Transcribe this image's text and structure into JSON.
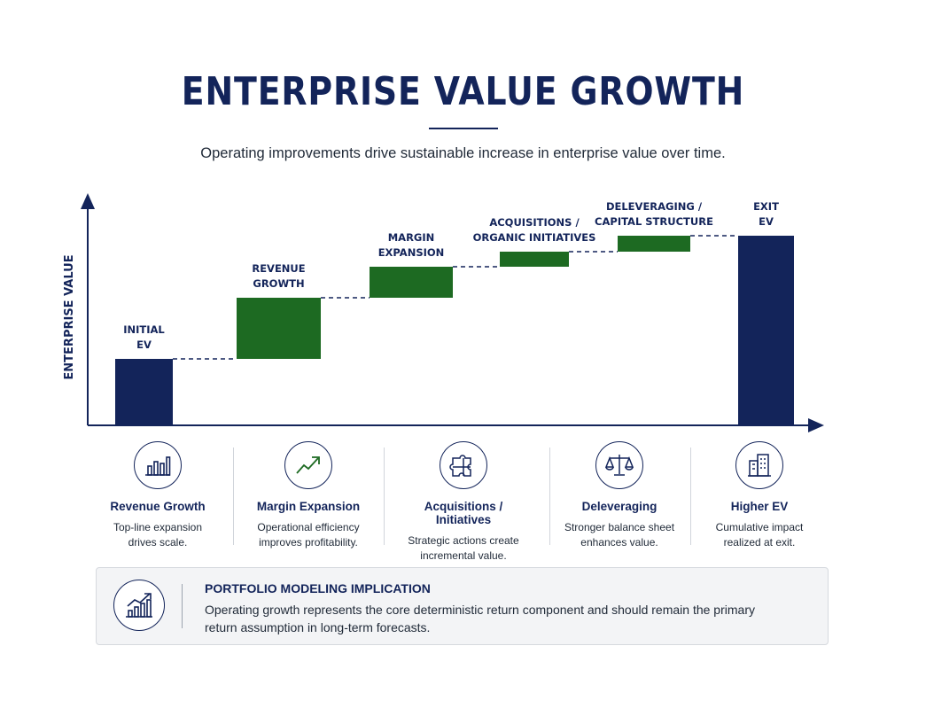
{
  "header": {
    "title": "ENTERPRISE VALUE GROWTH",
    "subtitle": "Operating improvements drive sustainable increase in enterprise value over time."
  },
  "colors": {
    "navy": "#13245a",
    "green": "#1d6a22"
  },
  "chart_data": {
    "type": "bar",
    "subtype": "waterfall",
    "ylabel": "ENTERPRISE VALUE",
    "xlabel": "",
    "categories": [
      "INITIAL EV",
      "REVENUE GROWTH",
      "MARGIN EXPANSION",
      "ACQUISITIONS / ORGANIC INITIATIVES",
      "DELEVERAGING / CAPITAL STRUCTURE",
      "EXIT EV"
    ],
    "label_lines": [
      [
        "INITIAL",
        "EV"
      ],
      [
        "REVENUE",
        "GROWTH"
      ],
      [
        "MARGIN",
        "EXPANSION"
      ],
      [
        "ACQUISITIONS /",
        "ORGANIC INITIATIVES"
      ],
      [
        "DELEVERAGING /",
        "CAPITAL STRUCTURE"
      ],
      [
        "EXIT",
        "EV"
      ]
    ],
    "bars": [
      {
        "kind": "total",
        "start": 0,
        "end": 30
      },
      {
        "kind": "increase",
        "start": 30,
        "end": 57.6
      },
      {
        "kind": "increase",
        "start": 57.6,
        "end": 71.6
      },
      {
        "kind": "increase",
        "start": 71.6,
        "end": 78.4
      },
      {
        "kind": "increase",
        "start": 78.4,
        "end": 85.6
      },
      {
        "kind": "total",
        "start": 0,
        "end": 85.6
      }
    ],
    "ylim": [
      0,
      100
    ],
    "ticks": false,
    "grid": false,
    "connectors": "dashed"
  },
  "drivers": [
    {
      "icon": "bar-chart-icon",
      "title": "Revenue Growth",
      "desc": [
        "Top-line expansion",
        "drives scale."
      ]
    },
    {
      "icon": "trend-up-icon",
      "title": "Margin Expansion",
      "desc": [
        "Operational efficiency",
        "improves profitability."
      ]
    },
    {
      "icon": "puzzle-icon",
      "title": "Acquisitions / Initiatives",
      "desc": [
        "Strategic actions create",
        "incremental value."
      ]
    },
    {
      "icon": "scales-icon",
      "title": "Deleveraging",
      "desc": [
        "Stronger balance sheet",
        "enhances value."
      ]
    },
    {
      "icon": "buildings-icon",
      "title": "Higher EV",
      "desc": [
        "Cumulative impact",
        "realized at exit."
      ]
    }
  ],
  "callout": {
    "icon": "growth-chart-icon",
    "title": "PORTFOLIO MODELING IMPLICATION",
    "text": "Operating growth represents the core deterministic return component and should remain the primary return assumption in long-term forecasts."
  }
}
